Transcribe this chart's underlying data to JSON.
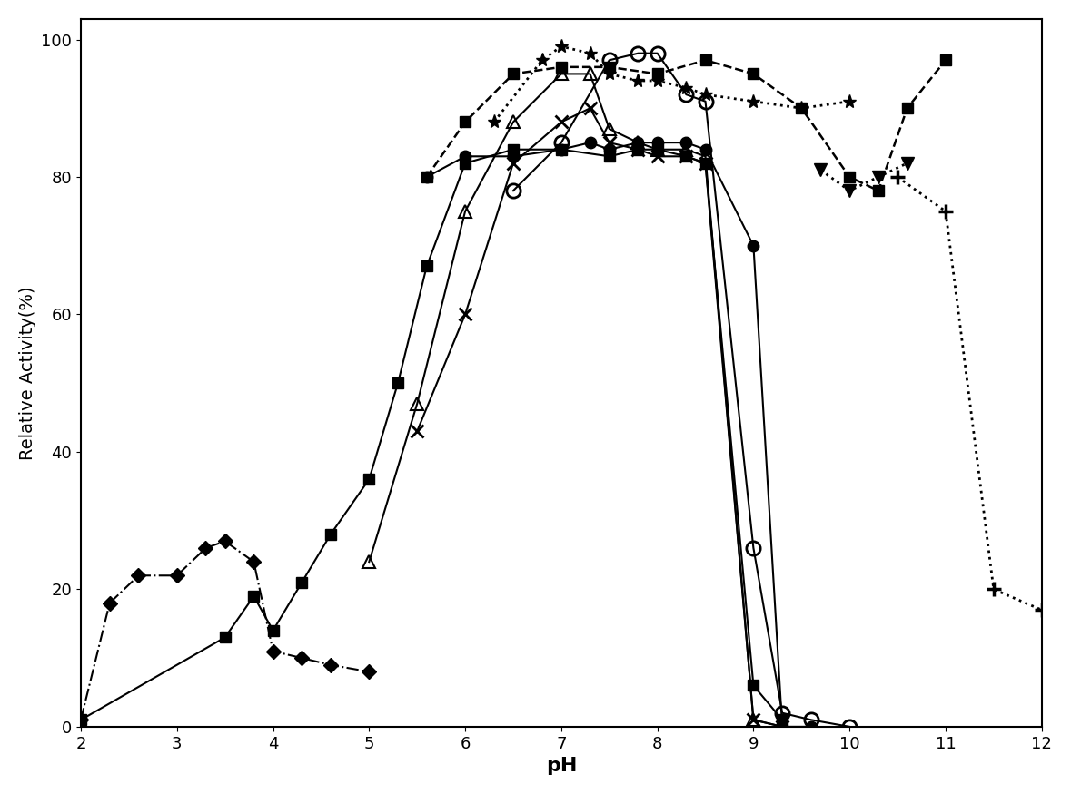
{
  "xlabel": "pH",
  "ylabel": "Relative Activity(%)",
  "xlim": [
    2,
    12
  ],
  "ylim": [
    0,
    103
  ],
  "xticks": [
    2,
    3,
    4,
    5,
    6,
    7,
    8,
    9,
    10,
    11,
    12
  ],
  "yticks": [
    0,
    20,
    40,
    60,
    80,
    100
  ],
  "series": [
    {
      "name": "filled_diamond_dashdot",
      "marker": "D",
      "markersize": 8,
      "markerfacecolor": "black",
      "markeredgecolor": "black",
      "linestyle": "-.",
      "linewidth": 1.5,
      "color": "black",
      "x": [
        2.0,
        2.3,
        2.6,
        3.0,
        3.3,
        3.5,
        3.8,
        4.0,
        4.3,
        4.6,
        5.0
      ],
      "y": [
        1,
        18,
        22,
        22,
        26,
        27,
        24,
        11,
        10,
        9,
        8
      ]
    },
    {
      "name": "filled_square_solid_rising",
      "marker": "s",
      "markersize": 9,
      "markerfacecolor": "black",
      "markeredgecolor": "black",
      "linestyle": "-",
      "linewidth": 1.5,
      "color": "black",
      "x": [
        2.0,
        3.5,
        3.8,
        4.0,
        4.3,
        4.6,
        5.0,
        5.3,
        5.6,
        6.0,
        6.5,
        7.0,
        7.5,
        7.8,
        8.0,
        8.3,
        8.5,
        9.0,
        9.3
      ],
      "y": [
        1,
        13,
        19,
        14,
        21,
        28,
        36,
        50,
        67,
        82,
        84,
        84,
        83,
        84,
        84,
        83,
        82,
        6,
        1
      ]
    },
    {
      "name": "filled_square_dashed_wide",
      "marker": "s",
      "markersize": 9,
      "markerfacecolor": "black",
      "markeredgecolor": "black",
      "linestyle": "--",
      "linewidth": 1.8,
      "color": "black",
      "x": [
        5.6,
        6.0,
        6.5,
        7.0,
        7.5,
        8.0,
        8.5,
        9.0,
        9.5,
        10.0,
        10.3,
        10.6,
        11.0
      ],
      "y": [
        80,
        88,
        95,
        96,
        96,
        95,
        97,
        95,
        90,
        80,
        78,
        90,
        97
      ]
    },
    {
      "name": "open_triangle_solid",
      "marker": "^",
      "markersize": 10,
      "markerfacecolor": "none",
      "markeredgecolor": "black",
      "markeredgewidth": 1.5,
      "linestyle": "-",
      "linewidth": 1.5,
      "color": "black",
      "x": [
        5.0,
        5.5,
        6.0,
        6.5,
        7.0,
        7.3,
        7.5,
        7.8,
        8.0,
        8.3,
        8.5,
        9.0,
        9.3
      ],
      "y": [
        24,
        47,
        75,
        88,
        95,
        95,
        87,
        85,
        84,
        84,
        83,
        1,
        0
      ]
    },
    {
      "name": "x_marker_solid",
      "marker": "x",
      "markersize": 10,
      "markeredgewidth": 2,
      "linestyle": "-",
      "linewidth": 1.5,
      "color": "black",
      "x": [
        5.5,
        6.0,
        6.5,
        7.0,
        7.3,
        7.5,
        7.8,
        8.0,
        8.3,
        8.5,
        9.0,
        9.3
      ],
      "y": [
        43,
        60,
        82,
        88,
        90,
        85,
        84,
        83,
        83,
        82,
        1,
        0
      ]
    },
    {
      "name": "filled_circle_solid",
      "marker": "o",
      "markersize": 9,
      "markerfacecolor": "black",
      "markeredgecolor": "black",
      "linestyle": "-",
      "linewidth": 1.5,
      "color": "black",
      "x": [
        5.6,
        6.0,
        6.5,
        7.0,
        7.3,
        7.5,
        7.8,
        8.0,
        8.3,
        8.5,
        9.0,
        9.3,
        9.6
      ],
      "y": [
        80,
        83,
        83,
        84,
        85,
        84,
        85,
        85,
        85,
        84,
        70,
        0,
        0
      ]
    },
    {
      "name": "open_circle_solid",
      "marker": "o",
      "markersize": 11,
      "markerfacecolor": "none",
      "markeredgecolor": "black",
      "markeredgewidth": 2,
      "linestyle": "-",
      "linewidth": 1.5,
      "color": "black",
      "x": [
        6.5,
        7.0,
        7.5,
        7.8,
        8.0,
        8.3,
        8.5,
        9.0,
        9.3,
        9.6,
        10.0
      ],
      "y": [
        78,
        85,
        97,
        98,
        98,
        92,
        91,
        26,
        2,
        1,
        0
      ]
    },
    {
      "name": "asterisk_dotted",
      "marker": "*",
      "markersize": 11,
      "markerfacecolor": "black",
      "markeredgecolor": "black",
      "linestyle": ":",
      "linewidth": 2.0,
      "color": "black",
      "x": [
        6.3,
        6.8,
        7.0,
        7.3,
        7.5,
        7.8,
        8.0,
        8.3,
        8.5,
        9.0,
        9.5,
        10.0
      ],
      "y": [
        88,
        97,
        99,
        98,
        95,
        94,
        94,
        93,
        92,
        91,
        90,
        91
      ]
    },
    {
      "name": "inverted_triangle_dotted",
      "marker": "v",
      "markersize": 10,
      "markerfacecolor": "black",
      "markeredgecolor": "black",
      "linestyle": ":",
      "linewidth": 2.0,
      "color": "black",
      "x": [
        9.7,
        10.0,
        10.3,
        10.6
      ],
      "y": [
        81,
        78,
        80,
        82
      ]
    },
    {
      "name": "plus_dotted",
      "marker": "+",
      "markersize": 12,
      "markeredgewidth": 2.5,
      "linestyle": ":",
      "linewidth": 2.0,
      "color": "black",
      "x": [
        10.5,
        11.0,
        11.5,
        12.0
      ],
      "y": [
        80,
        75,
        20,
        17
      ]
    }
  ]
}
